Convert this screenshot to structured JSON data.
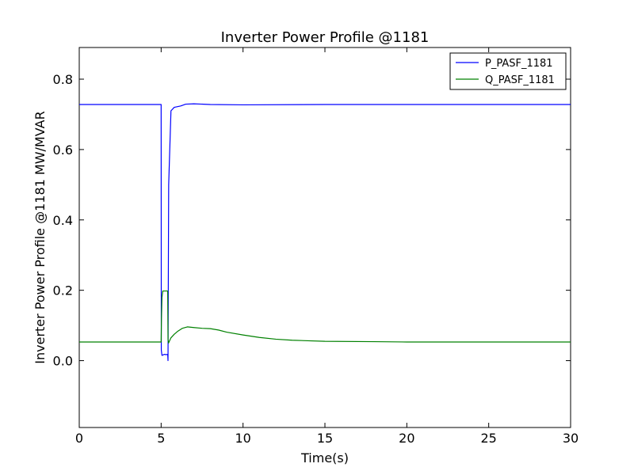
{
  "chart_data": {
    "type": "line",
    "title": "Inverter Power Profile @1181",
    "xlabel": "Time(s)",
    "ylabel": "Inverter Power Profile @1181 MW/MVAR",
    "xlim": [
      0,
      30
    ],
    "ylim": [
      -0.19,
      0.89
    ],
    "xticks": [
      0,
      5,
      10,
      15,
      20,
      25,
      30
    ],
    "xtick_labels": [
      "0",
      "5",
      "10",
      "15",
      "20",
      "25",
      "30"
    ],
    "yticks": [
      0.0,
      0.2,
      0.4,
      0.6,
      0.8
    ],
    "ytick_labels": [
      "0.0",
      "0.2",
      "0.4",
      "0.6",
      "0.8"
    ],
    "grid": false,
    "legend_position": "top-right",
    "series": [
      {
        "name": "P_PASF_1181",
        "color": "#0000ff",
        "x": [
          0,
          5.0,
          5.01,
          5.05,
          5.2,
          5.3,
          5.4,
          5.42,
          5.46,
          5.6,
          5.8,
          6.0,
          6.2,
          6.5,
          7.0,
          8.0,
          10.0,
          15.0,
          20.0,
          30.0
        ],
        "y": [
          0.728,
          0.728,
          0.03,
          0.015,
          0.018,
          0.017,
          0.018,
          0.0,
          0.5,
          0.71,
          0.72,
          0.722,
          0.724,
          0.729,
          0.73,
          0.728,
          0.727,
          0.728,
          0.728,
          0.728
        ]
      },
      {
        "name": "Q_PASF_1181",
        "color": "#008000",
        "x": [
          0,
          5.0,
          5.02,
          5.05,
          5.1,
          5.3,
          5.4,
          5.42,
          5.45,
          5.5,
          5.6,
          5.8,
          6.0,
          6.3,
          6.6,
          7.0,
          7.5,
          8.0,
          8.5,
          9.0,
          10.0,
          11.0,
          12.0,
          13.0,
          15.0,
          18.0,
          20.0,
          25.0,
          30.0
        ],
        "y": [
          0.053,
          0.053,
          0.12,
          0.18,
          0.198,
          0.198,
          0.198,
          0.06,
          0.05,
          0.055,
          0.065,
          0.075,
          0.083,
          0.092,
          0.096,
          0.094,
          0.092,
          0.091,
          0.087,
          0.081,
          0.073,
          0.066,
          0.061,
          0.058,
          0.055,
          0.054,
          0.053,
          0.053,
          0.053
        ]
      }
    ]
  }
}
